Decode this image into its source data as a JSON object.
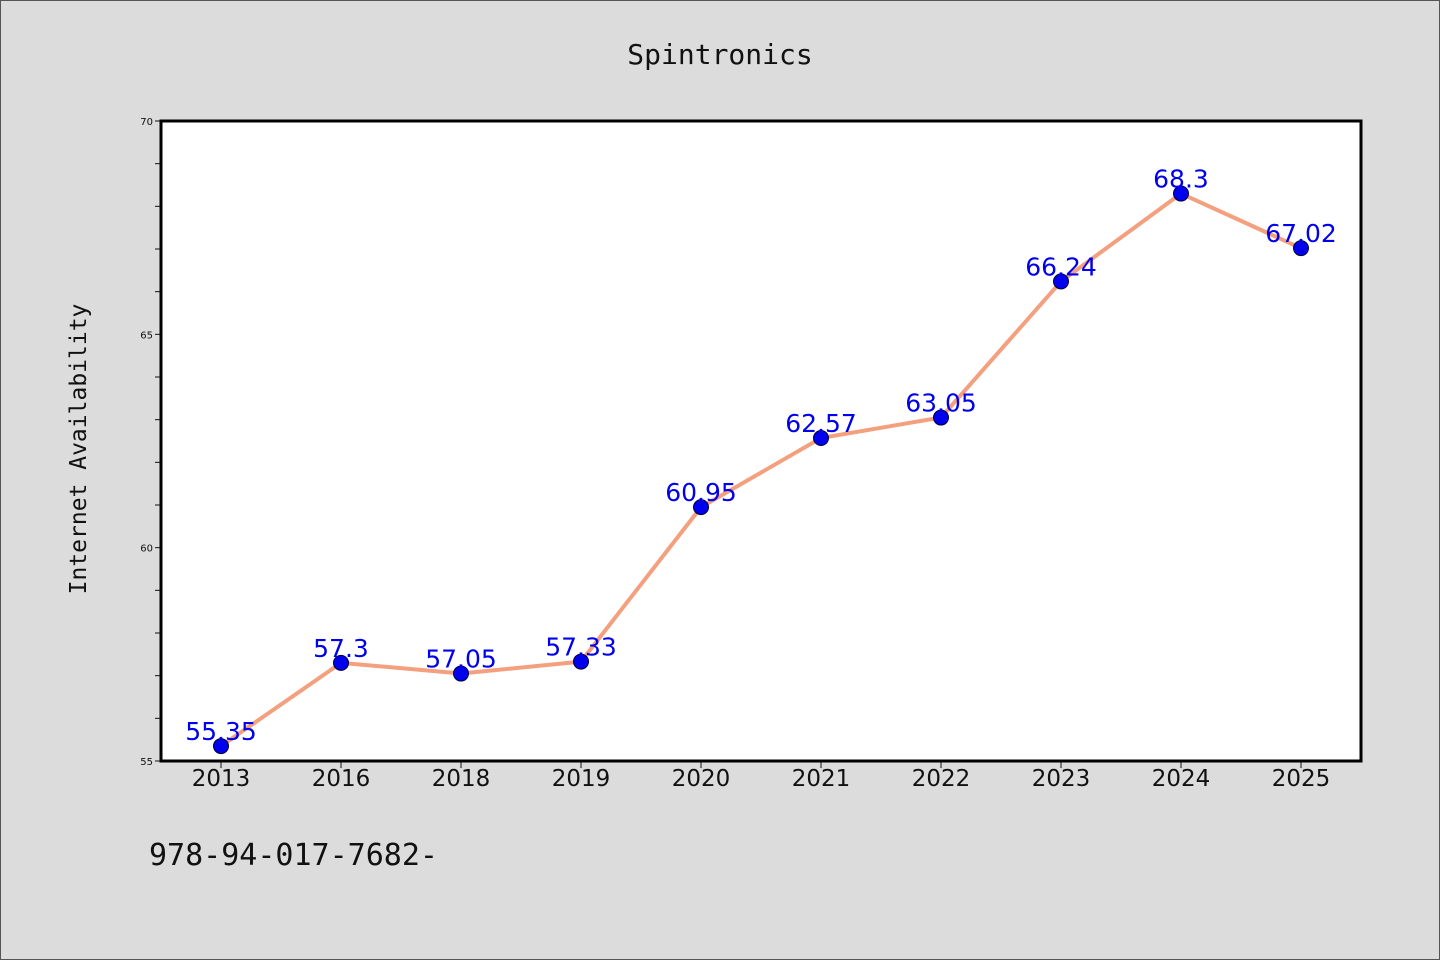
{
  "chart_data": {
    "type": "line",
    "title": "Spintronics",
    "xlabel": "",
    "ylabel": "Internet Availability",
    "categories": [
      "2013",
      "2016",
      "2018",
      "2019",
      "2020",
      "2021",
      "2022",
      "2023",
      "2024",
      "2025"
    ],
    "series": [
      {
        "values": [
          55.35,
          57.3,
          57.05,
          57.33,
          60.95,
          62.57,
          63.05,
          66.24,
          68.3,
          67.02
        ],
        "data_labels": [
          "55.35",
          "57.3",
          "57.05",
          "57.33",
          "60.95",
          "62.57",
          "63.05",
          "66.24",
          "68.3",
          "67.02"
        ],
        "line_color": "#f4a07e",
        "marker_color": "#0000ee"
      }
    ],
    "ylim": [
      55,
      70
    ],
    "yticks": [
      "55",
      "60",
      "65",
      "70"
    ],
    "grid": false,
    "legend": "none",
    "label_color": "#0000ee"
  },
  "footer": {
    "text": "978-94-017-7682-"
  },
  "colors": {
    "background": "#dcdcdc",
    "plot_area": "#ffffff"
  }
}
